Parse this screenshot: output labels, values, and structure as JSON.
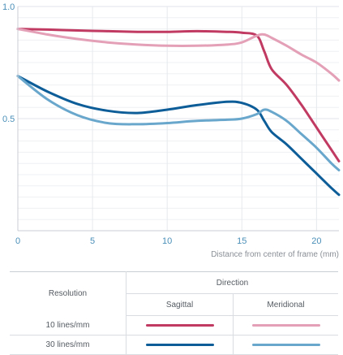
{
  "chart_data": {
    "type": "line",
    "title": "",
    "xlabel": "Distance from center of frame (mm)",
    "ylabel": "",
    "xlim": [
      0,
      21.5
    ],
    "ylim": [
      0,
      1.0
    ],
    "x_ticks": [
      "0",
      "5",
      "10",
      "15",
      "20"
    ],
    "y_ticks": [
      "0.5",
      "1.0"
    ],
    "grid": "horizontal",
    "series": [
      {
        "name": "10 lines/mm Sagittal",
        "color": "#c03a62",
        "x": [
          0,
          2,
          4,
          6,
          8,
          10,
          12,
          14,
          15,
          16,
          16.5,
          17,
          18,
          19,
          20,
          21,
          21.5
        ],
        "y": [
          0.9,
          0.897,
          0.893,
          0.89,
          0.887,
          0.887,
          0.89,
          0.887,
          0.883,
          0.87,
          0.8,
          0.72,
          0.65,
          0.56,
          0.46,
          0.36,
          0.31
        ]
      },
      {
        "name": "10 lines/mm Meridional",
        "color": "#e3a0b6",
        "x": [
          0,
          2,
          4,
          6,
          8,
          10,
          12,
          14,
          15,
          16,
          16.5,
          17,
          18,
          19,
          20,
          21,
          21.5
        ],
        "y": [
          0.9,
          0.875,
          0.855,
          0.84,
          0.83,
          0.825,
          0.825,
          0.83,
          0.84,
          0.87,
          0.875,
          0.86,
          0.825,
          0.785,
          0.75,
          0.7,
          0.67
        ]
      },
      {
        "name": "30 lines/mm Sagittal",
        "color": "#0d5d98",
        "x": [
          0,
          2,
          4,
          6,
          8,
          10,
          12,
          14,
          15,
          16,
          16.5,
          17,
          18,
          19,
          20,
          21,
          21.5
        ],
        "y": [
          0.69,
          0.62,
          0.565,
          0.535,
          0.525,
          0.54,
          0.56,
          0.575,
          0.57,
          0.54,
          0.49,
          0.44,
          0.385,
          0.32,
          0.255,
          0.19,
          0.16
        ]
      },
      {
        "name": "30 lines/mm Meridional",
        "color": "#6aa7cc",
        "x": [
          0,
          2,
          4,
          6,
          8,
          10,
          12,
          14,
          15,
          16,
          16.5,
          17,
          18,
          19,
          20,
          21,
          21.5
        ],
        "y": [
          0.69,
          0.585,
          0.515,
          0.48,
          0.475,
          0.48,
          0.49,
          0.495,
          0.5,
          0.52,
          0.54,
          0.53,
          0.49,
          0.43,
          0.37,
          0.3,
          0.27
        ]
      }
    ]
  },
  "legend": {
    "resolution_header": "Resolution",
    "direction_header": "Direction",
    "sagittal_label": "Sagittal",
    "meridional_label": "Meridional",
    "rows": [
      {
        "label": "10 lines/mm",
        "sagittal_color": "#c03a62",
        "meridional_color": "#e3a0b6"
      },
      {
        "label": "30 lines/mm",
        "sagittal_color": "#0d5d98",
        "meridional_color": "#6aa7cc"
      }
    ]
  }
}
